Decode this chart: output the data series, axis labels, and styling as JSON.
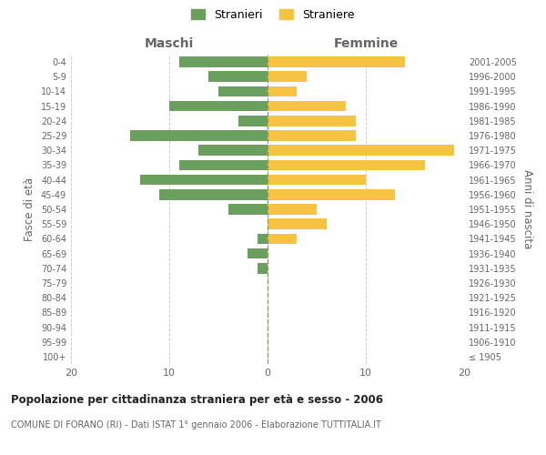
{
  "age_groups": [
    "100+",
    "95-99",
    "90-94",
    "85-89",
    "80-84",
    "75-79",
    "70-74",
    "65-69",
    "60-64",
    "55-59",
    "50-54",
    "45-49",
    "40-44",
    "35-39",
    "30-34",
    "25-29",
    "20-24",
    "15-19",
    "10-14",
    "5-9",
    "0-4"
  ],
  "birth_years": [
    "≤ 1905",
    "1906-1910",
    "1911-1915",
    "1916-1920",
    "1921-1925",
    "1926-1930",
    "1931-1935",
    "1936-1940",
    "1941-1945",
    "1946-1950",
    "1951-1955",
    "1956-1960",
    "1961-1965",
    "1966-1970",
    "1971-1975",
    "1976-1980",
    "1981-1985",
    "1986-1990",
    "1991-1995",
    "1996-2000",
    "2001-2005"
  ],
  "maschi": [
    0,
    0,
    0,
    0,
    0,
    0,
    1,
    2,
    1,
    0,
    4,
    11,
    13,
    9,
    7,
    14,
    3,
    10,
    5,
    6,
    9
  ],
  "femmine": [
    0,
    0,
    0,
    0,
    0,
    0,
    0,
    0,
    3,
    6,
    5,
    13,
    10,
    16,
    19,
    9,
    9,
    8,
    3,
    4,
    14
  ],
  "maschi_color": "#6a9f5e",
  "femmine_color": "#f5c242",
  "title": "Popolazione per cittadinanza straniera per età e sesso - 2006",
  "subtitle": "COMUNE DI FORANO (RI) - Dati ISTAT 1° gennaio 2006 - Elaborazione TUTTITALIA.IT",
  "ylabel_left": "Fasce di età",
  "ylabel_right": "Anni di nascita",
  "xlabel_left": "Maschi",
  "xlabel_right": "Femmine",
  "legend_maschi": "Stranieri",
  "legend_femmine": "Straniere",
  "xlim": 20,
  "background_color": "#ffffff",
  "grid_color": "#cccccc",
  "text_color": "#666666"
}
